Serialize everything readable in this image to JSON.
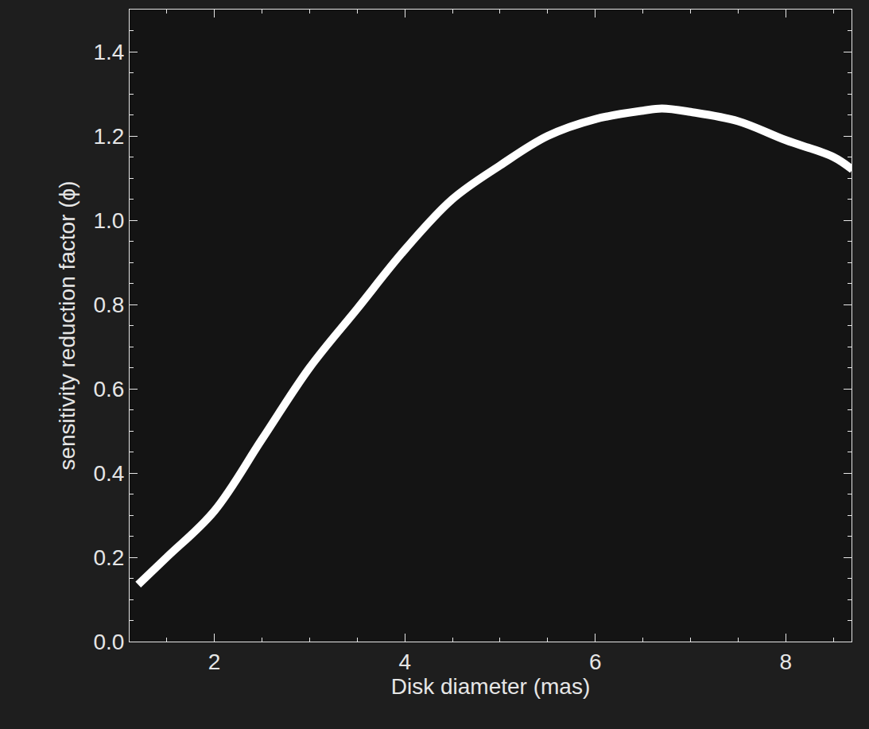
{
  "chart_data": {
    "type": "line",
    "x_label": "Disk diameter (mas)",
    "y_label": "sensitivity reduction factor (ϕ)",
    "x": [
      1.2,
      1.5,
      2.0,
      2.5,
      3.0,
      3.5,
      4.0,
      4.5,
      5.0,
      5.5,
      6.0,
      6.5,
      6.7,
      7.0,
      7.5,
      8.0,
      8.5,
      8.7
    ],
    "values": [
      0.135,
      0.2,
      0.31,
      0.48,
      0.65,
      0.79,
      0.93,
      1.05,
      1.13,
      1.2,
      1.24,
      1.26,
      1.265,
      1.257,
      1.235,
      1.19,
      1.15,
      1.12
    ],
    "color": "#ffffff",
    "xlim": [
      1.11,
      8.69
    ],
    "ylim": [
      0,
      1.5
    ],
    "xticks": [
      2,
      4,
      6,
      8
    ],
    "yticks": [
      {
        "value": 0,
        "label": "0.0"
      },
      0.2,
      0.4,
      0.6,
      0.8,
      {
        "value": 1,
        "label": "1.0"
      },
      1.2,
      1.4
    ],
    "grid": false
  }
}
